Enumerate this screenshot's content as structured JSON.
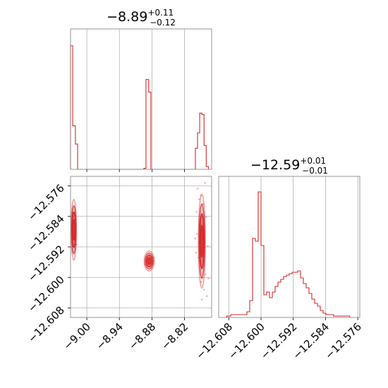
{
  "chart_data": [
    {
      "type": "histogram",
      "panel": "top-left",
      "title_value": "−8.89",
      "title_upper": "+0.11",
      "title_lower": "−0.12",
      "xlim": [
        -9.03,
        -8.77
      ],
      "color": "#d62728",
      "grid": true,
      "bins": [
        {
          "x0": -9.03,
          "x1": -9.026,
          "h": 0.88
        },
        {
          "x0": -9.026,
          "x1": -9.021,
          "h": 0.31
        },
        {
          "x0": -9.021,
          "x1": -9.017,
          "h": 0.18
        },
        {
          "x0": -9.017,
          "x1": -8.895,
          "h": 0.0
        },
        {
          "x0": -8.895,
          "x1": -8.891,
          "h": 0.007
        },
        {
          "x0": -8.891,
          "x1": -8.886,
          "h": 0.64
        },
        {
          "x0": -8.886,
          "x1": -8.882,
          "h": 0.55
        },
        {
          "x0": -8.882,
          "x1": -8.8,
          "h": 0.0
        },
        {
          "x0": -8.8,
          "x1": -8.796,
          "h": 0.15
        },
        {
          "x0": -8.796,
          "x1": -8.792,
          "h": 0.26
        },
        {
          "x0": -8.792,
          "x1": -8.788,
          "h": 0.4
        },
        {
          "x0": -8.788,
          "x1": -8.784,
          "h": 0.39
        },
        {
          "x0": -8.784,
          "x1": -8.78,
          "h": 0.17
        },
        {
          "x0": -8.78,
          "x1": -8.776,
          "h": 0.02
        }
      ]
    },
    {
      "type": "histogram",
      "panel": "bottom-right",
      "title_value": "−12.59",
      "title_upper": "+0.01",
      "title_lower": "−0.01",
      "xlim": [
        -12.6105,
        -12.5755
      ],
      "x_ticks": [
        -12.608,
        -12.6,
        -12.592,
        -12.584,
        -12.576
      ],
      "x_tick_labels": [
        "−12.608",
        "−12.600",
        "−12.592",
        "−12.584",
        "−12.576"
      ],
      "color": "#d62728",
      "grid": true,
      "bins": [
        {
          "x0": -12.6085,
          "x1": -12.6075,
          "h": 0.01
        },
        {
          "x0": -12.6075,
          "x1": -12.6035,
          "h": 0.02
        },
        {
          "x0": -12.6035,
          "x1": -12.6028,
          "h": 0.04
        },
        {
          "x0": -12.6028,
          "x1": -12.6021,
          "h": 0.12
        },
        {
          "x0": -12.6021,
          "x1": -12.6014,
          "h": 0.56
        },
        {
          "x0": -12.6014,
          "x1": -12.6007,
          "h": 0.54
        },
        {
          "x0": -12.6007,
          "x1": -12.6,
          "h": 0.89
        },
        {
          "x0": -12.6,
          "x1": -12.5993,
          "h": 0.51
        },
        {
          "x0": -12.5993,
          "x1": -12.5986,
          "h": 0.16
        },
        {
          "x0": -12.5986,
          "x1": -12.5979,
          "h": 0.18
        },
        {
          "x0": -12.5979,
          "x1": -12.5972,
          "h": 0.14
        },
        {
          "x0": -12.5972,
          "x1": -12.5965,
          "h": 0.18
        },
        {
          "x0": -12.5965,
          "x1": -12.5958,
          "h": 0.22
        },
        {
          "x0": -12.5958,
          "x1": -12.5951,
          "h": 0.25
        },
        {
          "x0": -12.5951,
          "x1": -12.5944,
          "h": 0.27
        },
        {
          "x0": -12.5944,
          "x1": -12.5937,
          "h": 0.29
        },
        {
          "x0": -12.5937,
          "x1": -12.593,
          "h": 0.3
        },
        {
          "x0": -12.593,
          "x1": -12.5923,
          "h": 0.31
        },
        {
          "x0": -12.5923,
          "x1": -12.5916,
          "h": 0.32
        },
        {
          "x0": -12.5916,
          "x1": -12.5909,
          "h": 0.32
        },
        {
          "x0": -12.5909,
          "x1": -12.5902,
          "h": 0.33
        },
        {
          "x0": -12.5902,
          "x1": -12.5895,
          "h": 0.28
        },
        {
          "x0": -12.5895,
          "x1": -12.5888,
          "h": 0.24
        },
        {
          "x0": -12.5888,
          "x1": -12.5881,
          "h": 0.21
        },
        {
          "x0": -12.5881,
          "x1": -12.5874,
          "h": 0.17
        },
        {
          "x0": -12.5874,
          "x1": -12.5867,
          "h": 0.13
        },
        {
          "x0": -12.5867,
          "x1": -12.586,
          "h": 0.1
        },
        {
          "x0": -12.586,
          "x1": -12.5853,
          "h": 0.08
        },
        {
          "x0": -12.5853,
          "x1": -12.5846,
          "h": 0.05
        },
        {
          "x0": -12.5846,
          "x1": -12.5839,
          "h": 0.03
        },
        {
          "x0": -12.5839,
          "x1": -12.582,
          "h": 0.02
        },
        {
          "x0": -12.582,
          "x1": -12.578,
          "h": 0.01
        }
      ]
    },
    {
      "type": "contour",
      "panel": "bottom-left",
      "xlim": [
        -9.03,
        -8.77
      ],
      "ylim": [
        -12.6105,
        -12.5735
      ],
      "x_ticks": [
        -9.0,
        -8.94,
        -8.88,
        -8.82
      ],
      "x_tick_labels": [
        "−9.00",
        "−8.94",
        "−8.88",
        "−8.82"
      ],
      "y_ticks": [
        -12.576,
        -12.584,
        -12.592,
        -12.6,
        -12.608
      ],
      "y_tick_labels": [
        "−12.576",
        "−12.584",
        "−12.592",
        "−12.600",
        "−12.608"
      ],
      "color": "#d62728",
      "grid": true,
      "blobs": [
        {
          "cx": -9.024,
          "cy": -12.5875,
          "rx": 0.0035,
          "ry": 0.0055
        },
        {
          "cx": -8.885,
          "cy": -12.5957,
          "rx": 0.0065,
          "ry": 0.0018
        },
        {
          "cx": -8.788,
          "cy": -12.5905,
          "rx": 0.0045,
          "ry": 0.0085
        }
      ],
      "scatter": [
        [
          -8.796,
          -12.5767
        ],
        [
          -8.79,
          -12.5785
        ],
        [
          -8.785,
          -12.5808
        ],
        [
          -8.798,
          -12.5828
        ],
        [
          -8.78,
          -12.5842
        ],
        [
          -8.792,
          -12.5863
        ],
        [
          -8.777,
          -12.5918
        ],
        [
          -8.795,
          -12.5948
        ],
        [
          -8.786,
          -12.5973
        ],
        [
          -8.781,
          -12.5992
        ],
        [
          -8.79,
          -12.6012
        ],
        [
          -8.784,
          -12.6032
        ],
        [
          -8.779,
          -12.6049
        ],
        [
          -8.8,
          -12.5898
        ],
        [
          -8.776,
          -12.6003
        ],
        [
          -8.793,
          -12.5795
        ],
        [
          -8.788,
          -12.6058
        ],
        [
          -8.797,
          -12.5886
        ],
        [
          -8.782,
          -12.5752
        ],
        [
          -8.799,
          -12.5935
        ],
        [
          -9.027,
          -12.5832
        ],
        [
          -9.019,
          -12.5914
        ],
        [
          -9.021,
          -12.5838
        ],
        [
          -9.026,
          -12.5932
        ],
        [
          -8.878,
          -12.5948
        ],
        [
          -8.893,
          -12.5966
        ]
      ]
    }
  ]
}
